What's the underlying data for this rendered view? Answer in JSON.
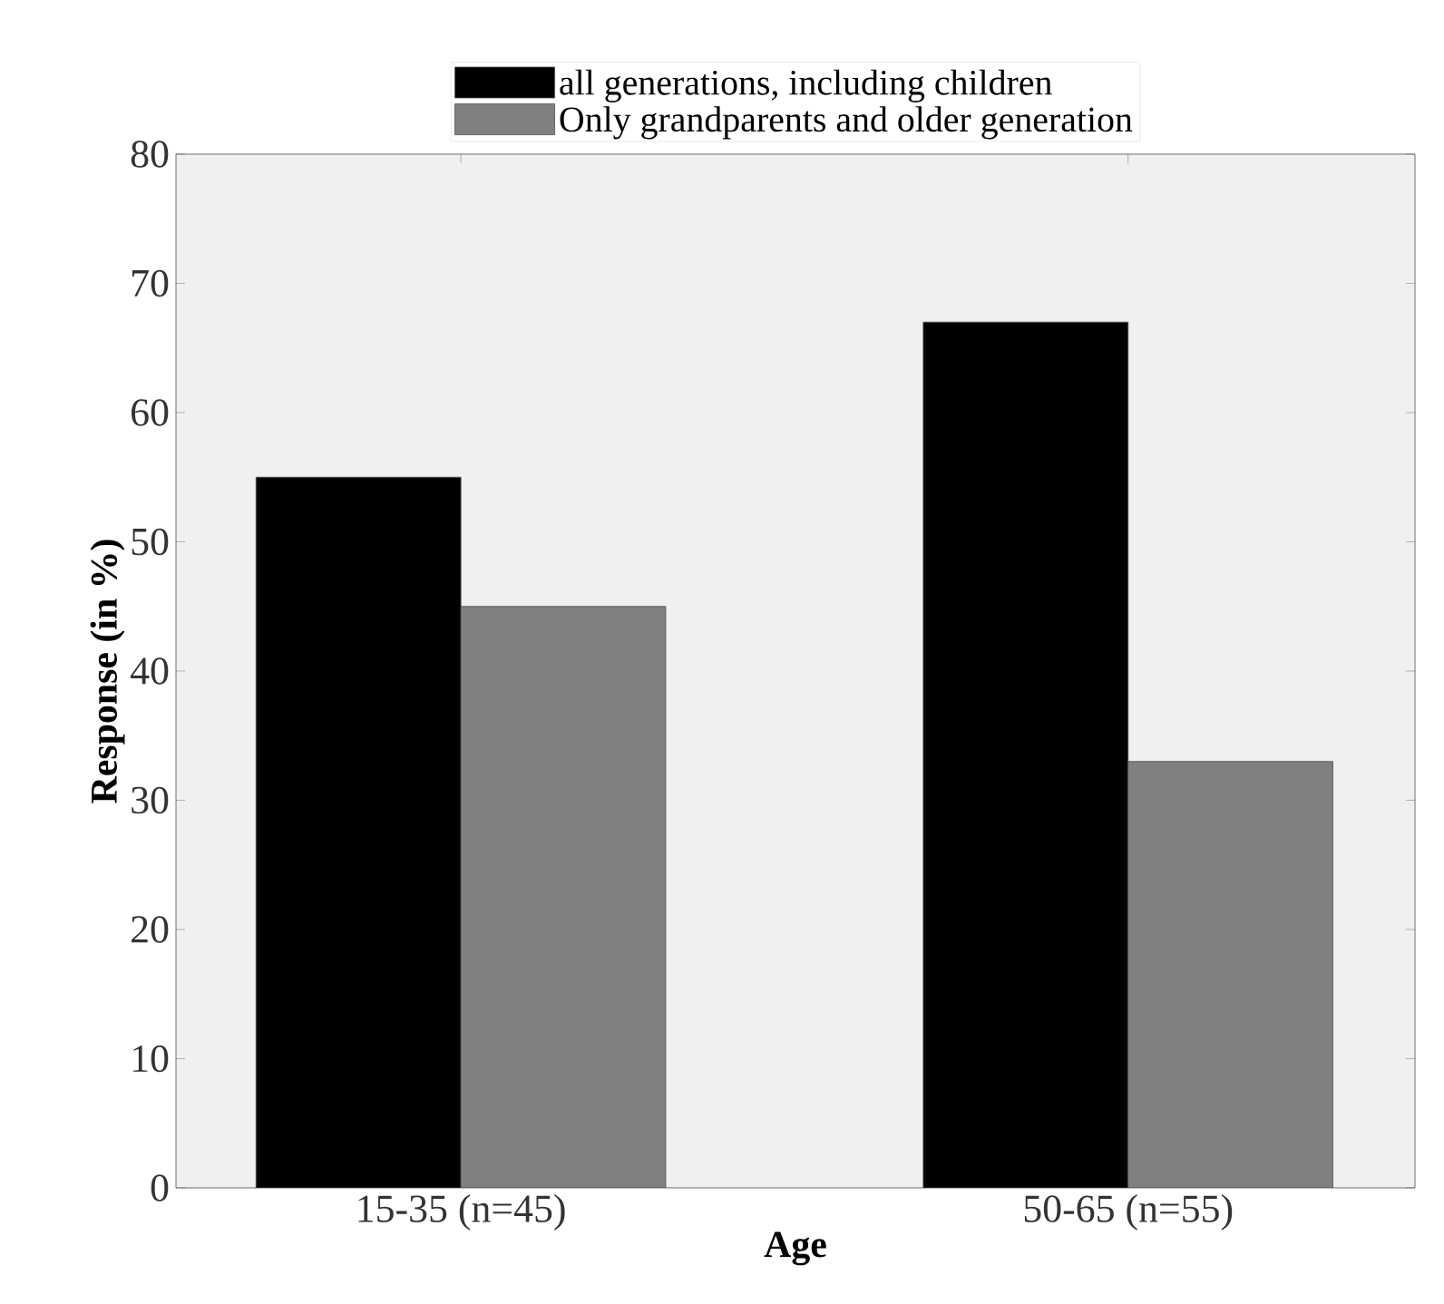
{
  "chart_data": {
    "type": "bar",
    "xlabel": "Age",
    "ylabel": "Response (in %)",
    "categories": [
      "15-35 (n=45)",
      "50-65 (n=55)"
    ],
    "series": [
      {
        "name": "all generations, including children",
        "color": "#000000",
        "values": [
          55,
          67
        ]
      },
      {
        "name": "Only grandparents and older generation",
        "color": "#808080",
        "values": [
          45,
          33
        ]
      }
    ],
    "ylim": [
      0,
      80
    ],
    "yticks": [
      0,
      10,
      20,
      30,
      40,
      50,
      60,
      70,
      80
    ],
    "grid": false,
    "legend": "top"
  }
}
